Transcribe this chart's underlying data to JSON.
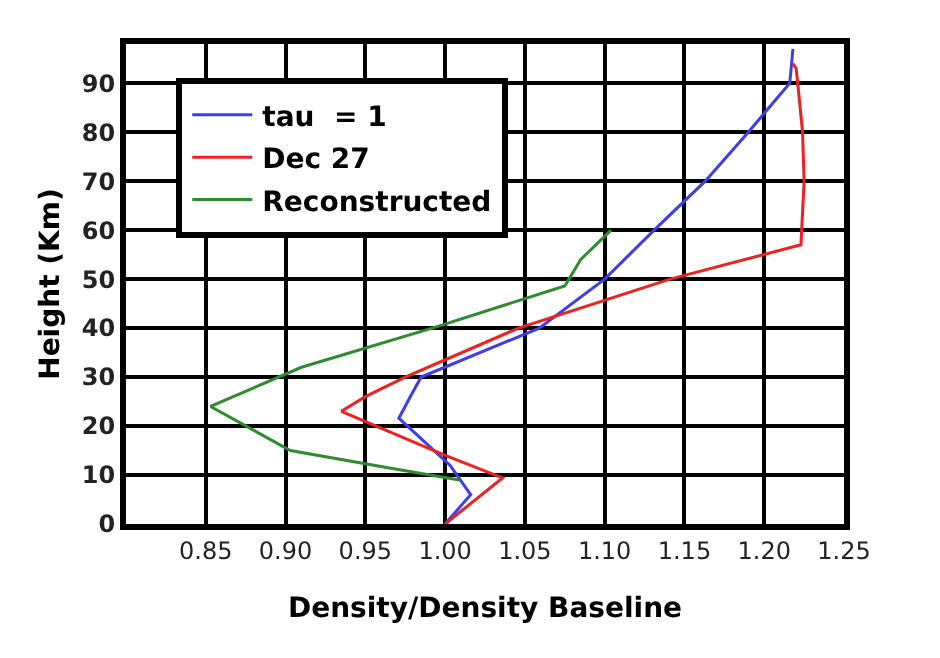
{
  "chart_data": {
    "type": "line",
    "xlabel": "Density/Density Baseline",
    "ylabel": "Height (Km)",
    "xlim": [
      0.8,
      1.25
    ],
    "xticks": [
      {
        "value": 0.85,
        "label": "0.85"
      },
      {
        "value": 0.9,
        "label": "0.90"
      },
      {
        "value": 0.95,
        "label": "0.95"
      },
      {
        "value": 1.0,
        "label": "1.00"
      },
      {
        "value": 1.05,
        "label": "1.05"
      },
      {
        "value": 1.1,
        "label": "1.10"
      },
      {
        "value": 1.15,
        "label": "1.15"
      },
      {
        "value": 1.2,
        "label": "1.20"
      },
      {
        "value": 1.25,
        "label": "1.25"
      }
    ],
    "ylim": [
      0,
      98
    ],
    "yticks": [
      0,
      10,
      20,
      30,
      40,
      50,
      60,
      70,
      80,
      90
    ],
    "grid": true,
    "legend": "top left",
    "marker": "none",
    "line_style": "solid",
    "series": [
      {
        "name": "tau  = 1",
        "color": "#3c3cf0",
        "x": [
          1.0,
          1.016,
          1.003,
          0.971,
          0.979,
          0.985,
          1.059,
          1.1,
          1.131,
          1.163,
          1.19,
          1.216,
          1.218
        ],
        "values": [
          0,
          6,
          12,
          21.6,
          26.5,
          30,
          40,
          50,
          60,
          70,
          80,
          90,
          97
        ]
      },
      {
        "name": "Dec 27",
        "color": "#f02020",
        "x": [
          1.0,
          1.036,
          1.0,
          0.935,
          0.95,
          0.975,
          1.046,
          1.141,
          1.223,
          1.225,
          1.224,
          1.221,
          1.22,
          1.218
        ],
        "values": [
          0,
          9.4,
          14,
          23,
          26,
          30,
          40,
          50,
          57,
          70,
          80,
          90,
          93,
          94
        ]
      },
      {
        "name": "Reconstructed",
        "color": "#2e8b2e",
        "x": [
          1.009,
          0.966,
          0.903,
          0.853,
          0.91,
          0.996,
          1.075,
          1.085,
          1.104
        ],
        "values": [
          9,
          11.4,
          15,
          24,
          32,
          40.4,
          48.6,
          54,
          60
        ]
      }
    ]
  }
}
